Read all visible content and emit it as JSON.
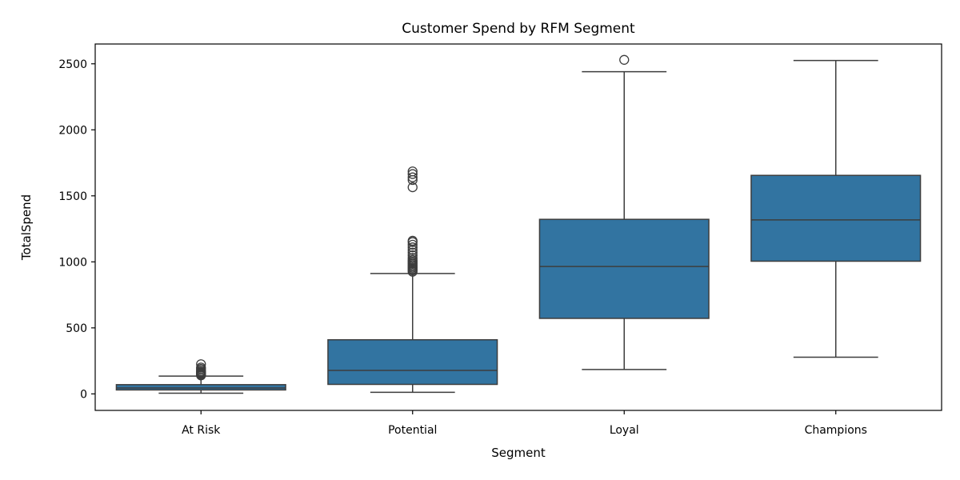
{
  "chart_data": {
    "type": "box",
    "title": "Customer Spend by RFM Segment",
    "xlabel": "Segment",
    "ylabel": "TotalSpend",
    "ylim": [
      -125,
      2650
    ],
    "yticks": [
      "0",
      "500",
      "1000",
      "1500",
      "2000",
      "2500"
    ],
    "grid": false,
    "legend": "none",
    "box_color": "#3274a1",
    "line_color": "#3d3d3d",
    "categories": [
      "At Risk",
      "Potential",
      "Loyal",
      "Champions"
    ],
    "boxes": [
      {
        "category": "At Risk",
        "whisker_low": 5,
        "q1": 30,
        "median": 45,
        "q3": 70,
        "whisker_high": 135,
        "outliers": [
          140,
          145,
          150,
          155,
          160,
          165,
          170,
          180,
          190,
          200,
          225
        ]
      },
      {
        "category": "Potential",
        "whisker_low": 12,
        "q1": 72,
        "median": 178,
        "q3": 410,
        "whisker_high": 912,
        "outliers": [
          925,
          935,
          945,
          955,
          965,
          975,
          985,
          995,
          1005,
          1015,
          1030,
          1050,
          1070,
          1090,
          1110,
          1130,
          1150,
          1160,
          1565,
          1620,
          1640,
          1665,
          1685
        ]
      },
      {
        "category": "Loyal",
        "whisker_low": 185,
        "q1": 572,
        "median": 965,
        "q3": 1322,
        "whisker_high": 2440,
        "outliers": [
          2530
        ]
      },
      {
        "category": "Champions",
        "whisker_low": 278,
        "q1": 1005,
        "median": 1318,
        "q3": 1655,
        "whisker_high": 2525,
        "outliers": []
      }
    ]
  }
}
